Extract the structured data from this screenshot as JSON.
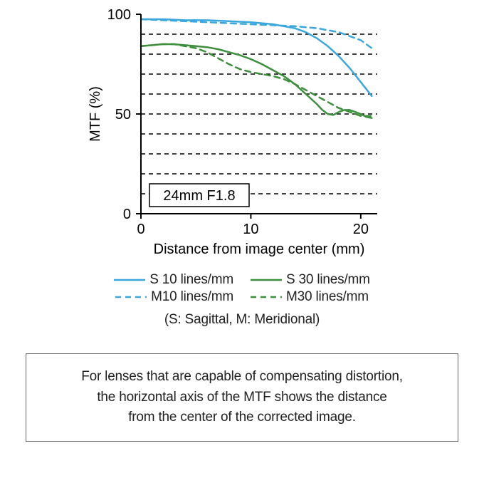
{
  "chart": {
    "type": "line",
    "background_color": "#ffffff",
    "axis_line_color": "#000000",
    "grid_color": "#000000",
    "grid_dash": "6,5",
    "line_width_axis": 2,
    "line_width_series": 2.5,
    "label_fontsize": 20,
    "tick_fontsize": 20,
    "boxlabel_fontsize": 20,
    "x": {
      "label": "Distance from image center (mm)",
      "min": 0,
      "max": 21.5,
      "ticks": [
        0,
        10,
        20
      ]
    },
    "y": {
      "label": "MTF (%)",
      "min": 0,
      "max": 100,
      "ticks": [
        0,
        50,
        100
      ],
      "gridlines": [
        10,
        20,
        30,
        40,
        50,
        60,
        70,
        80,
        90
      ]
    },
    "box_label": "24mm F1.8",
    "series": {
      "s10": {
        "label": "S 10 lines/mm",
        "color": "#3aa7de",
        "dash": "none",
        "points": [
          [
            0,
            97.5
          ],
          [
            2,
            97.5
          ],
          [
            4,
            97
          ],
          [
            6,
            97
          ],
          [
            8,
            96.5
          ],
          [
            10,
            96
          ],
          [
            12,
            95
          ],
          [
            14,
            93
          ],
          [
            15,
            91
          ],
          [
            16,
            88
          ],
          [
            17,
            84
          ],
          [
            18,
            79
          ],
          [
            19,
            73
          ],
          [
            20,
            66
          ],
          [
            21,
            59
          ]
        ]
      },
      "m10": {
        "label": "M10 lines/mm",
        "color": "#3aa7de",
        "dash": "8,6",
        "points": [
          [
            0,
            97.5
          ],
          [
            2,
            97
          ],
          [
            4,
            96.5
          ],
          [
            6,
            96
          ],
          [
            8,
            95.5
          ],
          [
            10,
            95
          ],
          [
            12,
            94.5
          ],
          [
            14,
            94
          ],
          [
            16,
            93
          ],
          [
            18,
            91
          ],
          [
            19,
            89
          ],
          [
            20,
            87
          ],
          [
            21,
            83
          ]
        ]
      },
      "s30": {
        "label": "S 30 lines/mm",
        "color": "#3c8f3c",
        "dash": "none",
        "points": [
          [
            0,
            84
          ],
          [
            2,
            85
          ],
          [
            3,
            85
          ],
          [
            4,
            84.5
          ],
          [
            5,
            84
          ],
          [
            6,
            83.5
          ],
          [
            7,
            82.5
          ],
          [
            8,
            81
          ],
          [
            9,
            79.5
          ],
          [
            10,
            77.5
          ],
          [
            11,
            75
          ],
          [
            12,
            72
          ],
          [
            13,
            69
          ],
          [
            14,
            65
          ],
          [
            15,
            60
          ],
          [
            16,
            55
          ],
          [
            16.5,
            52
          ],
          [
            17,
            50
          ],
          [
            17.5,
            49.5
          ],
          [
            18,
            51
          ],
          [
            18.5,
            52
          ],
          [
            19,
            52
          ],
          [
            19.5,
            51
          ],
          [
            20,
            50
          ],
          [
            20.5,
            48.5
          ],
          [
            21,
            48
          ]
        ]
      },
      "m30": {
        "label": "M30 lines/mm",
        "color": "#3c8f3c",
        "dash": "8,6",
        "points": [
          [
            0,
            84
          ],
          [
            2,
            85
          ],
          [
            3,
            85
          ],
          [
            4,
            84
          ],
          [
            5,
            83
          ],
          [
            6,
            81
          ],
          [
            7,
            78
          ],
          [
            8,
            75
          ],
          [
            9,
            72.5
          ],
          [
            10,
            71
          ],
          [
            11,
            70
          ],
          [
            12,
            69
          ],
          [
            13,
            67.5
          ],
          [
            14,
            65
          ],
          [
            15,
            62
          ],
          [
            16,
            59
          ],
          [
            17,
            56
          ],
          [
            18,
            53
          ],
          [
            19,
            51
          ],
          [
            20,
            49
          ],
          [
            21,
            49
          ]
        ]
      }
    }
  },
  "legend": {
    "s10": "S 10 lines/mm",
    "s30": "S 30 lines/mm",
    "m10": "M10 lines/mm",
    "m30": "M30 lines/mm",
    "caption": "(S: Sagittal, M: Meridional)"
  },
  "note": {
    "line1": "For lenses that are capable of compensating distortion,",
    "line2": "the horizontal axis of the MTF shows the distance",
    "line3": "from the center of the corrected image."
  }
}
